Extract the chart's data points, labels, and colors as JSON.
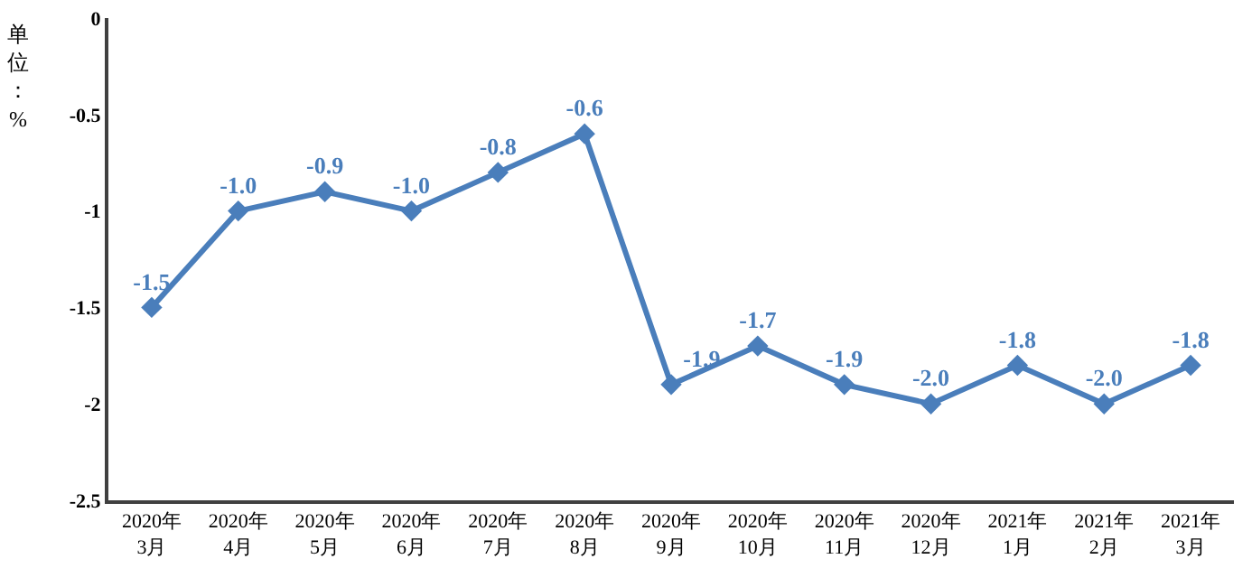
{
  "chart_data": {
    "type": "line",
    "ylabel": "单位：%",
    "categories": [
      "2020年\n3月",
      "2020年\n4月",
      "2020年\n5月",
      "2020年\n6月",
      "2020年\n7月",
      "2020年\n8月",
      "2020年\n9月",
      "2020年\n10月",
      "2020年\n11月",
      "2020年\n12月",
      "2021年\n1月",
      "2021年\n2月",
      "2021年\n3月"
    ],
    "series": [
      {
        "color": "#4a7ebb",
        "values": [
          -1.5,
          -1.0,
          -0.9,
          -1.0,
          -0.8,
          -0.6,
          -1.9,
          -1.7,
          -1.9,
          -2.0,
          -1.8,
          -2.0,
          -1.8
        ],
        "value_labels": [
          "-1.5",
          "-1.0",
          "-0.9",
          "-1.0",
          "-0.8",
          "-0.6",
          "-1.9",
          "-1.7",
          "-1.9",
          "-2.0",
          "-1.8",
          "-2.0",
          "-1.8"
        ]
      }
    ],
    "ylim": [
      -2.5,
      0
    ],
    "yticks": [
      0,
      -0.5,
      -1,
      -1.5,
      -2,
      -2.5
    ],
    "grid": false,
    "marker": "diamond",
    "line_style": "solid"
  }
}
